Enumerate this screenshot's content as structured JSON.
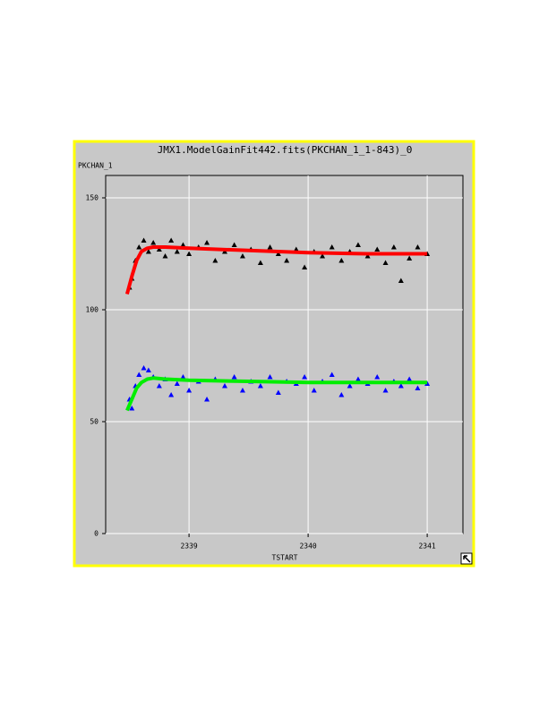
{
  "chart_data": {
    "type": "scatter",
    "title": "JMX1.ModelGainFit442.fits(PKCHAN_1_1-843)_0",
    "y_label": "PKCHAN_1",
    "x_label": "TSTART",
    "xlim": [
      2338.3,
      2341.3
    ],
    "ylim": [
      0,
      160
    ],
    "xticks": [
      2339,
      2340,
      2341
    ],
    "yticks": [
      0,
      50,
      100,
      150
    ],
    "grid": true,
    "series": [
      {
        "color": "#000000",
        "marker": "triangle",
        "x": [
          2338.5,
          2338.52,
          2338.55,
          2338.58,
          2338.62,
          2338.66,
          2338.7,
          2338.75,
          2338.8,
          2338.85,
          2338.9,
          2338.95,
          2339.0,
          2339.08,
          2339.15,
          2339.22,
          2339.3,
          2339.38,
          2339.45,
          2339.52,
          2339.6,
          2339.68,
          2339.75,
          2339.82,
          2339.9,
          2339.97,
          2340.05,
          2340.12,
          2340.2,
          2340.28,
          2340.35,
          2340.42,
          2340.5,
          2340.58,
          2340.65,
          2340.72,
          2340.78,
          2340.85,
          2340.92,
          2341.0
        ],
        "values": [
          110,
          114,
          122,
          128,
          131,
          126,
          130,
          127,
          124,
          131,
          126,
          129,
          125,
          128,
          130,
          122,
          126,
          129,
          124,
          127,
          121,
          128,
          125,
          122,
          127,
          119,
          126,
          124,
          128,
          122,
          126,
          129,
          124,
          127,
          121,
          128,
          113,
          123,
          128,
          125
        ]
      },
      {
        "color": "#0000ff",
        "marker": "triangle",
        "x": [
          2338.5,
          2338.52,
          2338.55,
          2338.58,
          2338.62,
          2338.66,
          2338.7,
          2338.75,
          2338.8,
          2338.85,
          2338.9,
          2338.95,
          2339.0,
          2339.08,
          2339.15,
          2339.22,
          2339.3,
          2339.38,
          2339.45,
          2339.52,
          2339.6,
          2339.68,
          2339.75,
          2339.82,
          2339.9,
          2339.97,
          2340.05,
          2340.12,
          2340.2,
          2340.28,
          2340.35,
          2340.42,
          2340.5,
          2340.58,
          2340.65,
          2340.72,
          2340.78,
          2340.85,
          2340.92,
          2341.0
        ],
        "values": [
          60,
          56,
          66,
          71,
          74,
          73,
          70,
          66,
          69,
          62,
          67,
          70,
          64,
          68,
          60,
          69,
          66,
          70,
          64,
          68,
          66,
          70,
          63,
          68,
          67,
          70,
          64,
          68,
          71,
          62,
          66,
          69,
          67,
          70,
          64,
          68,
          66,
          69,
          65,
          67
        ]
      },
      {
        "color": "#ff0000",
        "marker": "line",
        "x": [
          2338.48,
          2338.52,
          2338.56,
          2338.6,
          2338.65,
          2338.7,
          2338.8,
          2339.0,
          2339.5,
          2340.0,
          2340.5,
          2341.0
        ],
        "values": [
          107,
          115,
          122,
          126,
          127.5,
          128,
          128,
          127.5,
          126.5,
          125.5,
          125,
          125
        ]
      },
      {
        "color": "#00ee00",
        "marker": "line",
        "x": [
          2338.48,
          2338.52,
          2338.56,
          2338.6,
          2338.65,
          2338.7,
          2338.8,
          2339.0,
          2339.5,
          2340.0,
          2340.5,
          2341.0
        ],
        "values": [
          55,
          60,
          65,
          67.5,
          69,
          69.5,
          69,
          68.5,
          68,
          67.5,
          67.5,
          67.5
        ]
      }
    ]
  }
}
